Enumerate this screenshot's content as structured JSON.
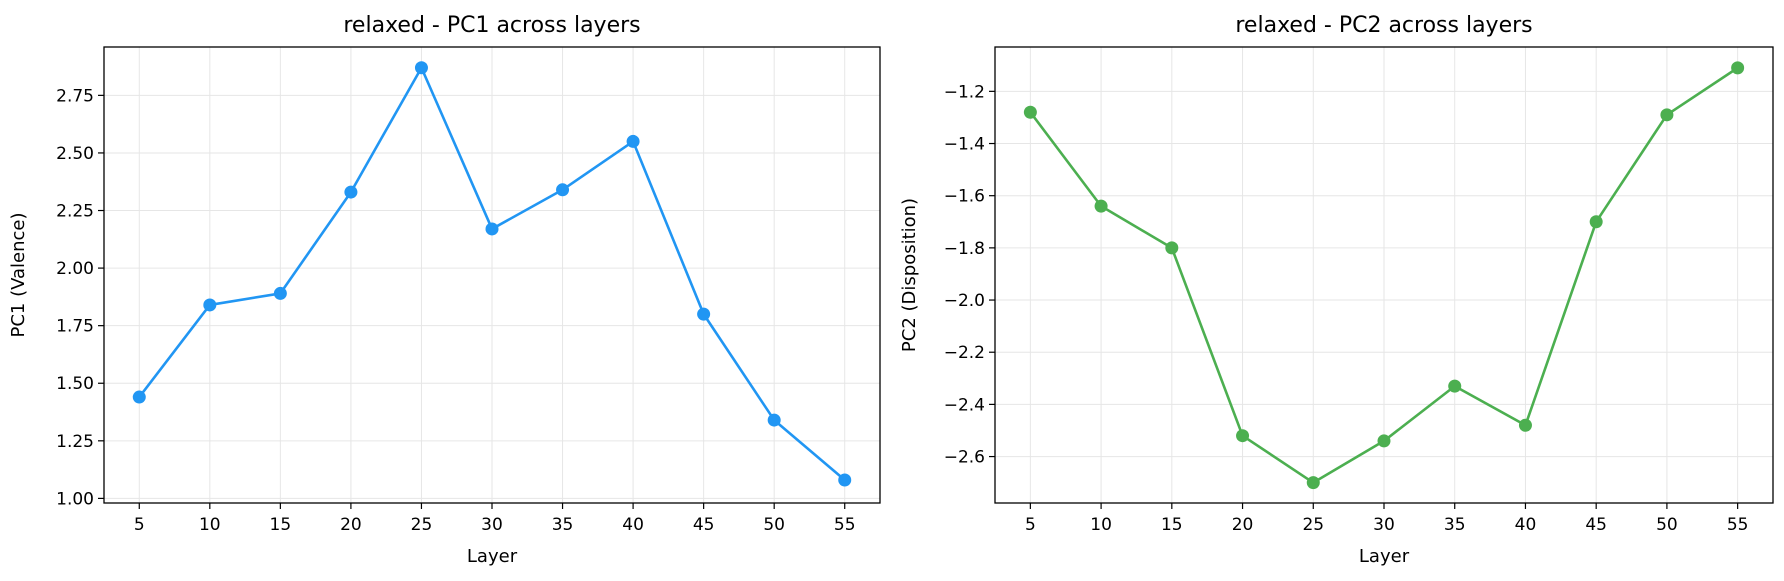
{
  "chart_data": [
    {
      "type": "line",
      "title": "relaxed - PC1 across layers",
      "xlabel": "Layer",
      "ylabel": "PC1 (Valence)",
      "x": [
        5,
        10,
        15,
        20,
        25,
        30,
        35,
        40,
        45,
        50,
        55
      ],
      "xticks": [
        "5",
        "10",
        "15",
        "20",
        "25",
        "30",
        "35",
        "40",
        "45",
        "50",
        "55"
      ],
      "xlim": [
        2.5,
        57.5
      ],
      "ylim": [
        0.98,
        2.96
      ],
      "yticks": [
        "1.00",
        "1.25",
        "1.50",
        "1.75",
        "2.00",
        "2.25",
        "2.50",
        "2.75"
      ],
      "ytick_values": [
        1.0,
        1.25,
        1.5,
        1.75,
        2.0,
        2.25,
        2.5,
        2.75
      ],
      "grid": true,
      "series": [
        {
          "color": "#2196F3",
          "values": [
            1.44,
            1.84,
            1.89,
            2.33,
            2.87,
            2.17,
            2.34,
            2.55,
            1.8,
            1.34,
            1.08
          ]
        }
      ]
    },
    {
      "type": "line",
      "title": "relaxed - PC2 across layers",
      "xlabel": "Layer",
      "ylabel": "PC2 (Disposition)",
      "x": [
        5,
        10,
        15,
        20,
        25,
        30,
        35,
        40,
        45,
        50,
        55
      ],
      "xticks": [
        "5",
        "10",
        "15",
        "20",
        "25",
        "30",
        "35",
        "40",
        "45",
        "50",
        "55"
      ],
      "xlim": [
        2.5,
        57.5
      ],
      "ylim": [
        -2.778,
        -1.03
      ],
      "yticks": [
        "−2.6",
        "−2.4",
        "−2.2",
        "−2.0",
        "−1.8",
        "−1.6",
        "−1.4",
        "−1.2"
      ],
      "ytick_values": [
        -2.6,
        -2.4,
        -2.2,
        -2.0,
        -1.8,
        -1.6,
        -1.4,
        -1.2
      ],
      "grid": true,
      "series": [
        {
          "color": "#4CAF50",
          "values": [
            -1.28,
            -1.64,
            -1.8,
            -2.52,
            -2.7,
            -2.54,
            -2.33,
            -2.48,
            -1.7,
            -1.29,
            -1.11
          ]
        }
      ]
    }
  ]
}
